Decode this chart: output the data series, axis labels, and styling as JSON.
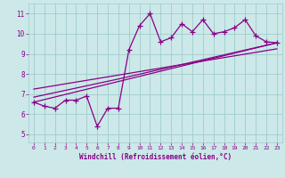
{
  "title": "",
  "xlabel": "Windchill (Refroidissement éolien,°C)",
  "ylabel": "",
  "bg_color": "#cce8e8",
  "line_color": "#880088",
  "x_ticks": [
    0,
    1,
    2,
    3,
    4,
    5,
    6,
    7,
    8,
    9,
    10,
    11,
    12,
    13,
    14,
    15,
    16,
    17,
    18,
    19,
    20,
    21,
    22,
    23
  ],
  "y_ticks": [
    5,
    6,
    7,
    8,
    9,
    10,
    11
  ],
  "xlim": [
    -0.5,
    23.5
  ],
  "ylim": [
    4.6,
    11.5
  ],
  "series1_x": [
    0,
    1,
    2,
    3,
    4,
    5,
    6,
    7,
    8,
    9,
    10,
    11,
    12,
    13,
    14,
    15,
    16,
    17,
    18,
    19,
    20,
    21,
    22,
    23
  ],
  "series1_y": [
    6.6,
    6.4,
    6.3,
    6.7,
    6.7,
    6.9,
    5.4,
    6.3,
    6.3,
    9.2,
    10.4,
    11.0,
    9.6,
    9.8,
    10.5,
    10.1,
    10.7,
    10.0,
    10.1,
    10.3,
    10.7,
    9.9,
    9.6,
    9.55
  ],
  "series2_x": [
    0,
    23
  ],
  "series2_y": [
    6.6,
    9.55
  ],
  "series3_x": [
    0,
    8,
    23
  ],
  "series3_y": [
    6.85,
    7.75,
    9.55
  ],
  "series4_x": [
    0,
    23
  ],
  "series4_y": [
    7.25,
    9.25
  ],
  "grid_color": "#a0cccc",
  "tick_label_color": "#880088",
  "axis_label_color": "#880088"
}
